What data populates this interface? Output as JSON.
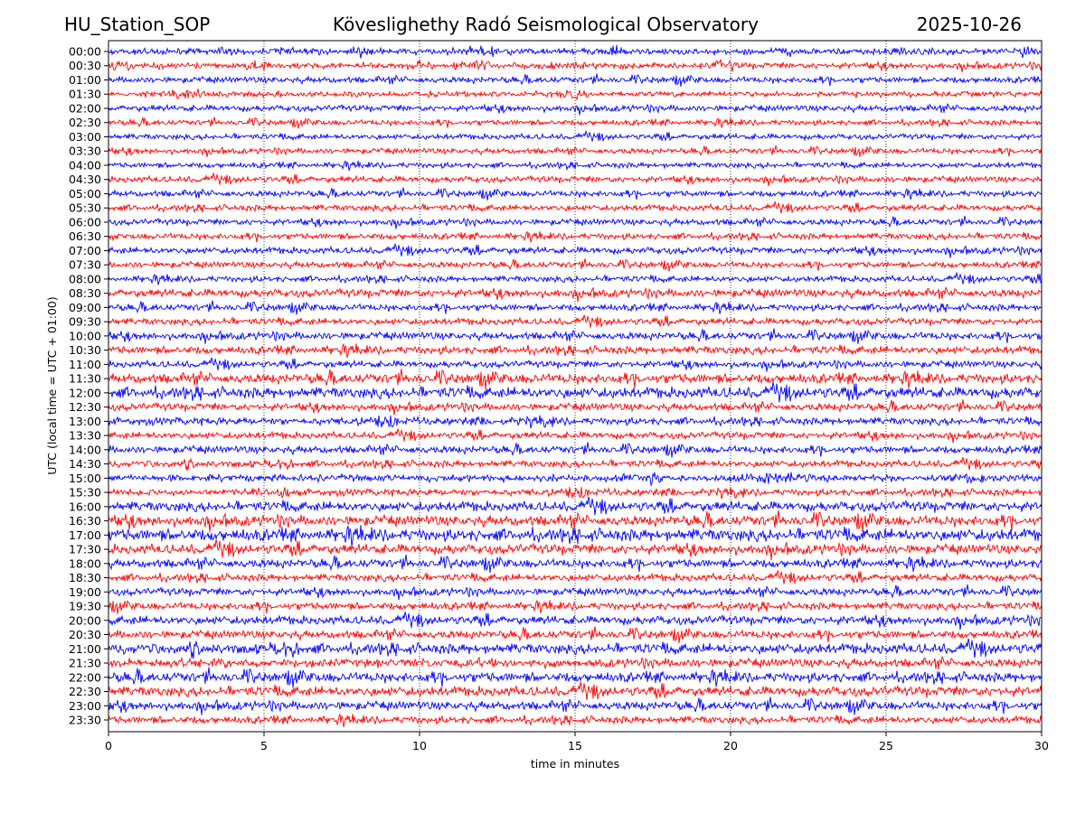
{
  "header": {
    "station": "HU_Station_SOP",
    "observatory": "Köveslighethy Radó Seismological Observatory",
    "date": "2025-10-26"
  },
  "chart_data": {
    "type": "line",
    "title": "Köveslighethy Radó Seismological Observatory",
    "xlabel": "time in minutes",
    "ylabel": "UTC (local time = UTC + 01:00)",
    "xlim": [
      0,
      30
    ],
    "xticks": [
      "0",
      "5",
      "10",
      "15",
      "20",
      "25",
      "30"
    ],
    "grid": "vertical dotted at each x tick",
    "colors": [
      "#0000ff",
      "#ff0000"
    ],
    "rows": [
      "00:00",
      "00:30",
      "01:00",
      "01:30",
      "02:00",
      "02:30",
      "03:00",
      "03:30",
      "04:00",
      "04:30",
      "05:00",
      "05:30",
      "06:00",
      "06:30",
      "07:00",
      "07:30",
      "08:00",
      "08:30",
      "09:00",
      "09:30",
      "10:00",
      "10:30",
      "11:00",
      "11:30",
      "12:00",
      "12:30",
      "13:00",
      "13:30",
      "14:00",
      "14:30",
      "15:00",
      "15:30",
      "16:00",
      "16:30",
      "17:00",
      "17:30",
      "18:00",
      "18:30",
      "19:00",
      "19:30",
      "20:00",
      "20:30",
      "21:00",
      "21:30",
      "22:00",
      "22:30",
      "23:00",
      "23:30"
    ],
    "relative_amplitude": [
      1,
      1,
      1,
      0.9,
      1,
      0.9,
      0.9,
      0.9,
      0.9,
      1,
      1,
      1,
      1,
      1,
      1.1,
      1,
      1,
      1.3,
      1.1,
      1.1,
      1.2,
      1.3,
      1.1,
      1.6,
      1.8,
      1.2,
      1.2,
      1.1,
      1.2,
      1.1,
      1.1,
      1.1,
      1.6,
      1.7,
      2,
      1.6,
      1.4,
      1.2,
      1.2,
      1.2,
      1.4,
      1.3,
      1.7,
      1.4,
      1.6,
      1.6,
      1.4,
      1.2
    ]
  }
}
